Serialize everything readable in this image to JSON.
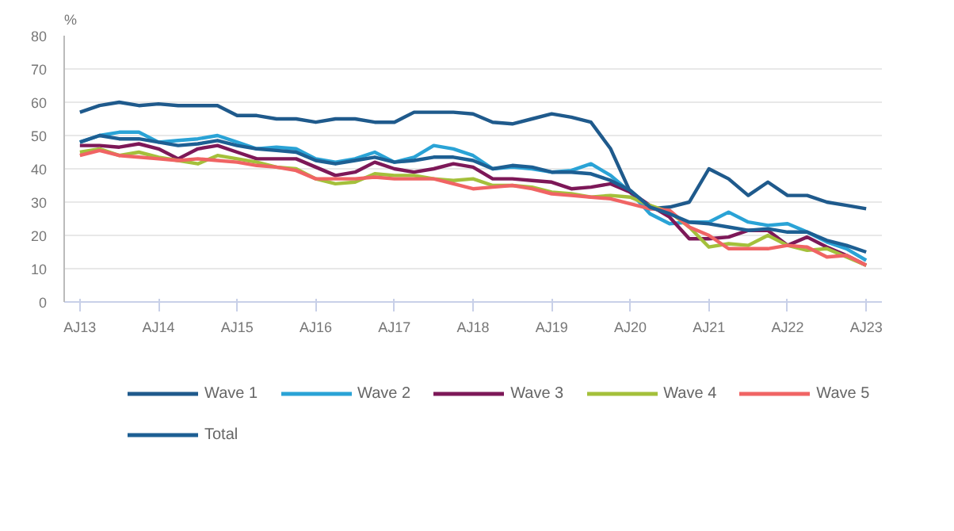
{
  "chart_data": {
    "type": "line",
    "ylabel": "%",
    "categories": [
      "AJ13",
      null,
      null,
      null,
      "AJ14",
      null,
      null,
      null,
      "AJ15",
      null,
      null,
      null,
      "AJ16",
      null,
      null,
      null,
      "AJ17",
      null,
      null,
      null,
      "AJ18",
      null,
      null,
      null,
      "AJ19",
      null,
      null,
      null,
      "AJ20",
      null,
      null,
      null,
      "AJ21",
      null,
      null,
      null,
      "AJ22",
      null,
      null,
      null,
      "AJ23"
    ],
    "ylim": [
      0,
      80
    ],
    "yticks": [
      0,
      10,
      20,
      30,
      40,
      50,
      60,
      70,
      80
    ],
    "grid": "y",
    "legend": "bottom",
    "marker": "none",
    "line_style": "solid",
    "series": [
      {
        "name": "Wave 1",
        "color": "#1f5a8c",
        "values": [
          57,
          59,
          60,
          59,
          59.5,
          59,
          59,
          59,
          56,
          56,
          55,
          55,
          54,
          55,
          55,
          54,
          54,
          57,
          57,
          57,
          56.5,
          54,
          53.5,
          55,
          56.5,
          55.5,
          54,
          46,
          33,
          28,
          28.5,
          30,
          40,
          37,
          32,
          36,
          32,
          32,
          30,
          29,
          28
        ]
      },
      {
        "name": "Wave 2",
        "color": "#2aa3d6",
        "values": [
          48,
          50,
          51,
          51,
          48,
          48.5,
          49,
          50,
          48,
          46,
          46.5,
          46,
          43,
          42,
          43,
          45,
          42,
          43.5,
          47,
          46,
          44,
          40,
          40.5,
          40,
          39,
          39.5,
          41.5,
          38,
          33,
          26.5,
          23.5,
          24,
          24,
          27,
          24,
          23,
          23.5,
          21,
          18,
          16,
          12.5
        ]
      },
      {
        "name": "Wave 3",
        "color": "#7d1858",
        "values": [
          47,
          47,
          46.5,
          47.5,
          46,
          43,
          46,
          47,
          45,
          43,
          43,
          43,
          40.5,
          38,
          39,
          42,
          40,
          39,
          40,
          41.5,
          40.5,
          37,
          37,
          36.5,
          36,
          34,
          34.5,
          35.5,
          33,
          29,
          25.5,
          19,
          19,
          19.5,
          21.5,
          21.5,
          17,
          19.5,
          16.5,
          14,
          11
        ]
      },
      {
        "name": "Wave 4",
        "color": "#a4c03b",
        "values": [
          45,
          46,
          44,
          45,
          43.5,
          42.5,
          41.5,
          44,
          43,
          42,
          40.5,
          40,
          37,
          35.5,
          36,
          38.5,
          38,
          38,
          37,
          36.5,
          37,
          35,
          35,
          34.5,
          33,
          32.5,
          31.5,
          32,
          31.5,
          29,
          27,
          22.5,
          16.5,
          17.5,
          17,
          20,
          17,
          15.5,
          16,
          13.5,
          11
        ]
      },
      {
        "name": "Wave 5",
        "color": "#f06464",
        "values": [
          44,
          45.5,
          44,
          43.5,
          43,
          42.5,
          43,
          42.5,
          42,
          41,
          40.5,
          39.5,
          37,
          37,
          37,
          37.5,
          37,
          37,
          37,
          35.5,
          34,
          34.5,
          35,
          34,
          32.5,
          32,
          31.5,
          31,
          29.5,
          28,
          27.5,
          22.5,
          20,
          16,
          16,
          16,
          17,
          16.5,
          13.5,
          14,
          11
        ]
      },
      {
        "name": "Total",
        "color": "#1d5f93",
        "values": [
          48,
          50,
          49,
          49,
          48,
          47,
          47.5,
          48.5,
          47,
          46,
          45.5,
          45,
          42.5,
          41.5,
          42.5,
          43.5,
          42,
          42.5,
          43.5,
          43.5,
          42.5,
          40,
          41,
          40.5,
          39,
          39,
          38.5,
          36.5,
          33.5,
          28.5,
          26.5,
          24,
          23.5,
          22.5,
          21.5,
          22,
          21,
          21,
          18.5,
          17,
          15
        ]
      }
    ]
  }
}
